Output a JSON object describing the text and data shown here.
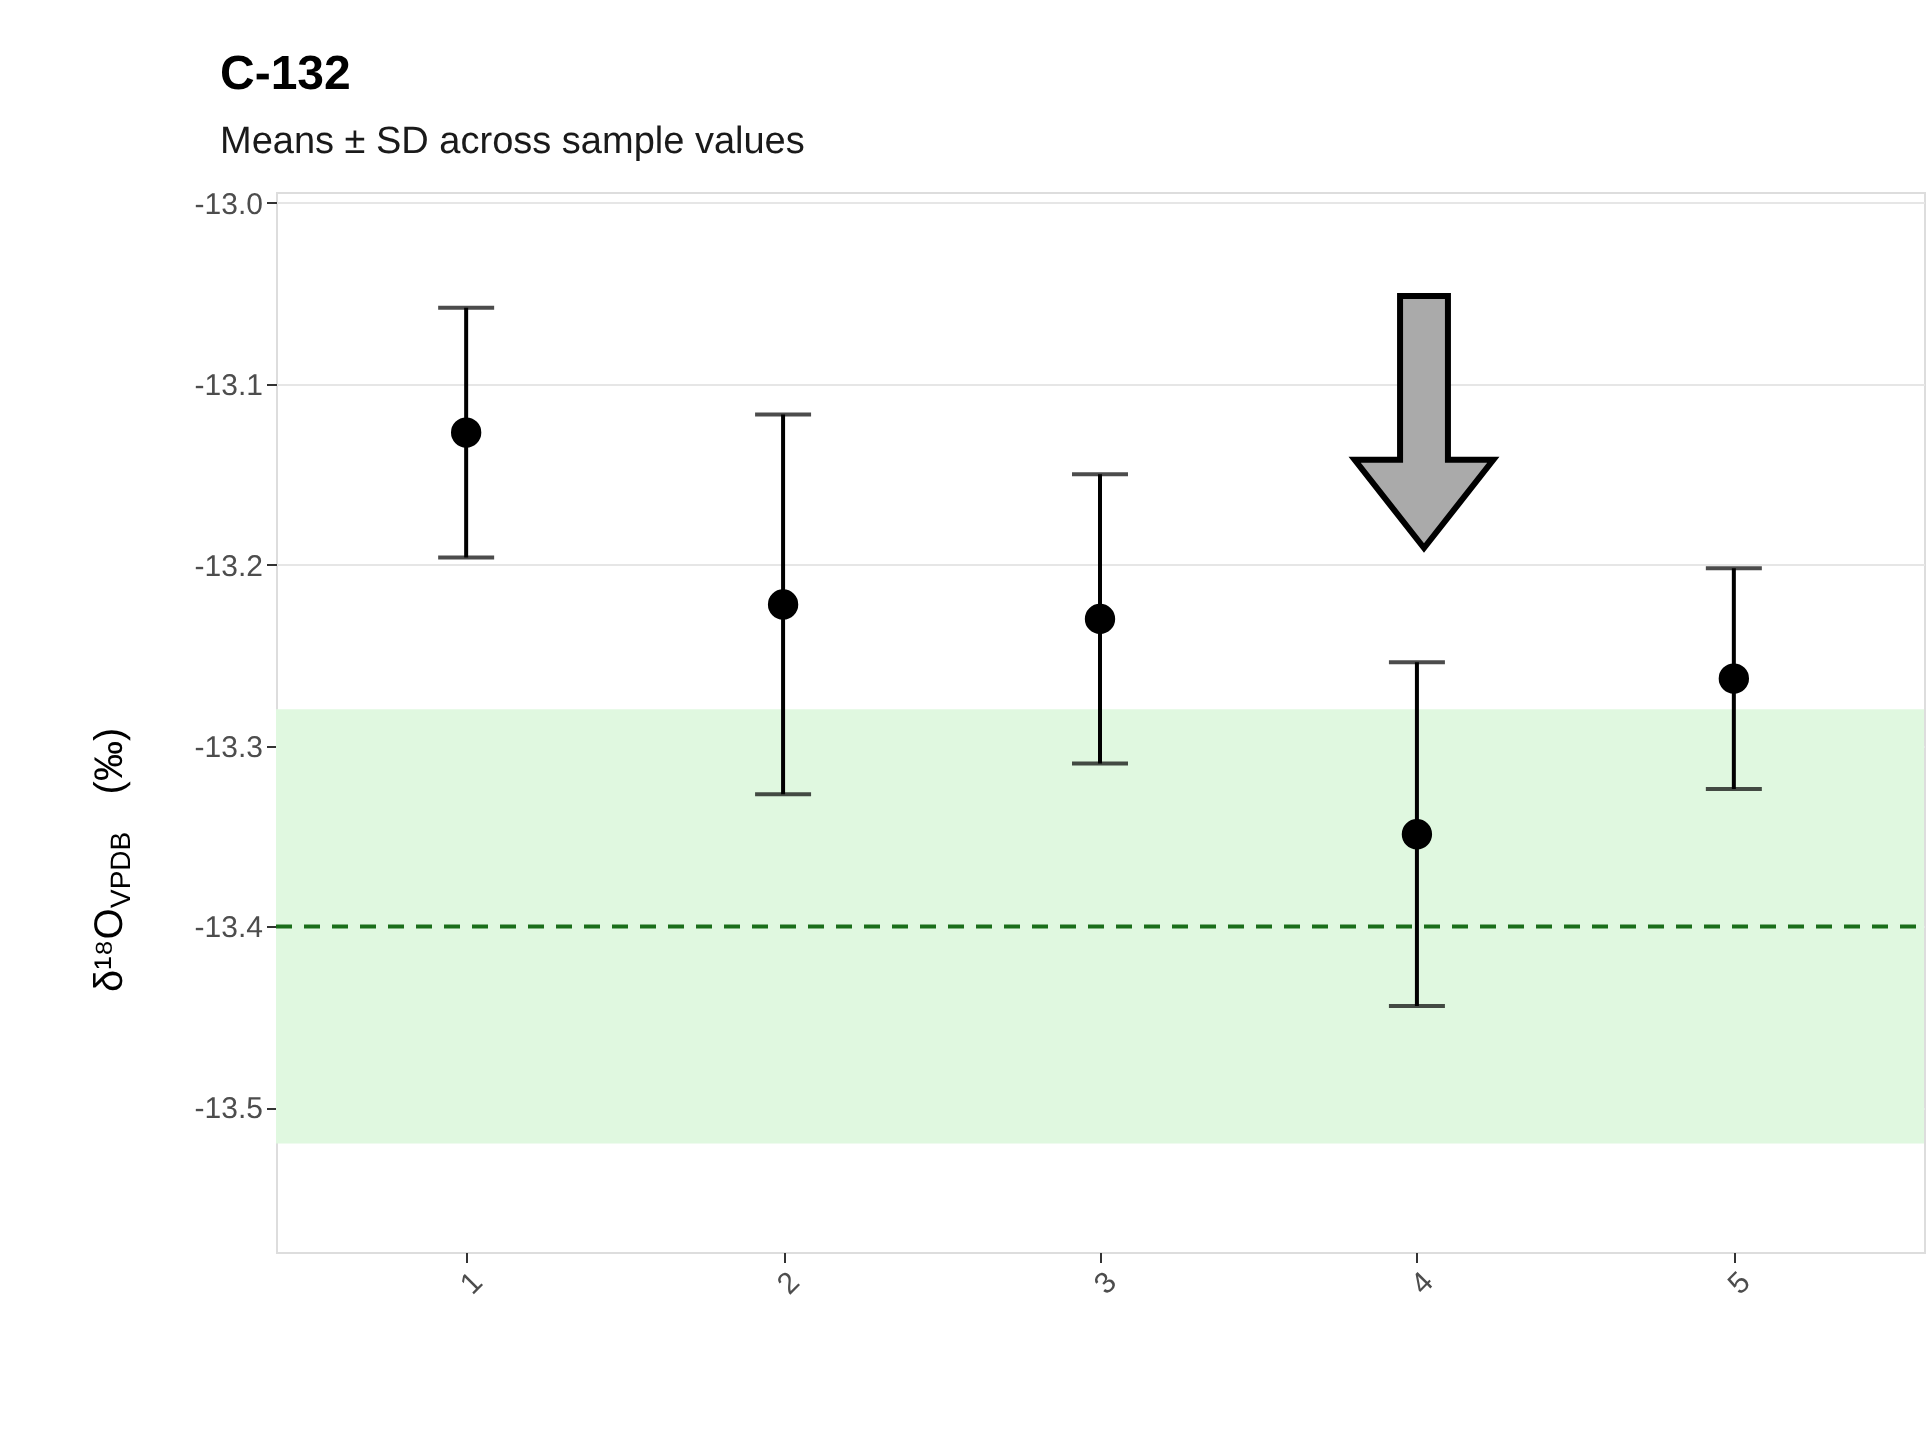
{
  "chart_data": {
    "type": "scatter",
    "title": "C-132",
    "subtitle": "Means ± SD across sample values",
    "ylabel": "δ¹⁸O$_{VPDB}$ (‰)",
    "categories": [
      "1",
      "2",
      "3",
      "4",
      "5"
    ],
    "series": [
      {
        "color": "#000000",
        "values": [
          -13.127,
          -13.222,
          -13.23,
          -13.349,
          -13.263
        ],
        "errors": [
          0.069,
          0.105,
          0.08,
          0.095,
          0.061
        ]
      }
    ],
    "ylim": [
      -13.58,
      -12.994
    ],
    "yticks": [
      {
        "value": -13.0,
        "label": "-13.0"
      },
      {
        "value": -13.1,
        "label": "-13.1"
      },
      {
        "value": -13.2,
        "label": "-13.2"
      },
      {
        "value": -13.3,
        "label": "-13.3"
      },
      {
        "value": -13.4,
        "label": "-13.4"
      },
      {
        "value": -13.5,
        "label": "-13.5"
      }
    ],
    "ref_lines": [
      {
        "axis": "y",
        "value": -13.4,
        "color": "#1a6e1a",
        "line_style": "dashed"
      }
    ],
    "bands": [
      {
        "axis": "y",
        "from": -13.52,
        "to": -13.28,
        "color": "#e0f8e0"
      }
    ],
    "grid": "y",
    "marker": "circle"
  }
}
